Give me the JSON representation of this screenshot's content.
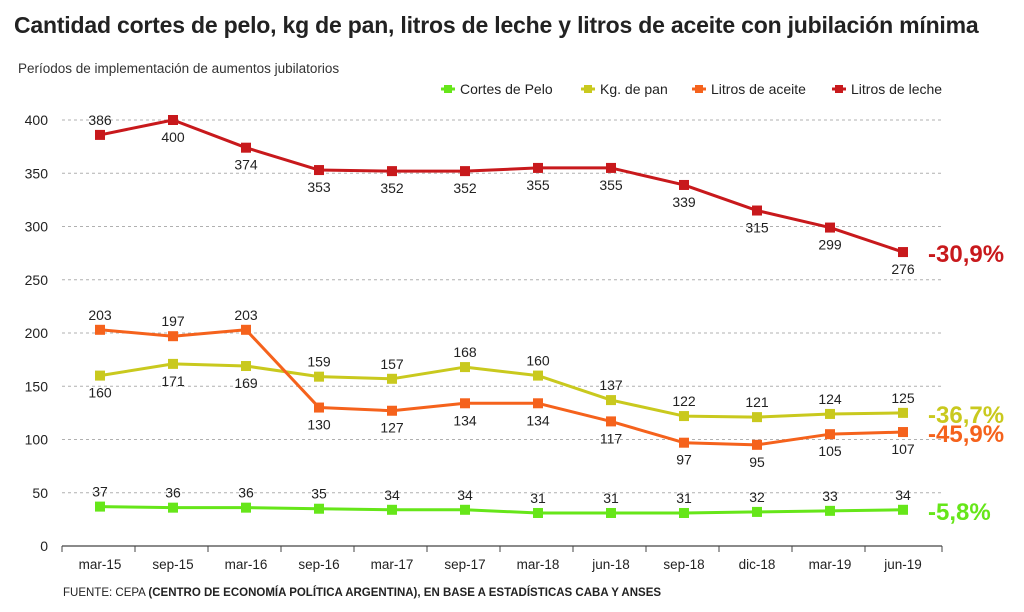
{
  "title": "Cantidad cortes de pelo, kg de pan, litros de leche y litros de aceite con jubilación mínima",
  "subtitle": "Períodos de implementación de aumentos jubilatorios",
  "footer": {
    "prefix": "FUENTE: CEPA ",
    "bold": "(CENTRO DE ECONOMÍA POLÍTICA ARGENTINA), EN BASE A ESTADÍSTICAS CABA Y ANSES"
  },
  "chart_data": {
    "type": "line",
    "title": "Cantidad cortes de pelo, kg de pan, litros de leche y litros de aceite con jubilación mínima",
    "subtitle": "Períodos de implementación de aumentos jubilatorios",
    "categories": [
      "mar-15",
      "sep-15",
      "mar-16",
      "sep-16",
      "mar-17",
      "sep-17",
      "mar-18",
      "jun-18",
      "sep-18",
      "dic-18",
      "mar-19",
      "jun-19"
    ],
    "ylim": [
      0,
      400
    ],
    "yticks": [
      0,
      50,
      100,
      150,
      200,
      250,
      300,
      350,
      400
    ],
    "grid": true,
    "legend_position": "top-right",
    "series": [
      {
        "name": "Cortes de Pelo",
        "color": "#66e619",
        "values": [
          37,
          36,
          36,
          35,
          34,
          34,
          31,
          31,
          31,
          32,
          33,
          34
        ],
        "labels": [
          "37",
          "36",
          "36",
          "35",
          "34",
          "34",
          "31",
          "31",
          "31",
          "32",
          "33",
          "34"
        ],
        "label_side": [
          "above",
          "above",
          "above",
          "above",
          "above",
          "above",
          "above",
          "above",
          "above",
          "above",
          "above",
          "above"
        ],
        "change": "-5,8%"
      },
      {
        "name": "Kg. de pan",
        "color": "#c9c91e",
        "values": [
          160,
          171,
          169,
          159,
          157,
          168,
          160,
          137,
          122,
          121,
          124,
          125
        ],
        "labels": [
          "160",
          "171",
          "169",
          "159",
          "157",
          "168",
          "160",
          "137",
          "122",
          "121",
          "124",
          "125"
        ],
        "label_side": [
          "below",
          "below",
          "below",
          "above",
          "above",
          "above",
          "above",
          "above",
          "above",
          "above",
          "above",
          "above"
        ],
        "change": "-36,7%"
      },
      {
        "name": "Litros de aceite",
        "color": "#f5621c",
        "values": [
          203,
          197,
          203,
          130,
          127,
          134,
          134,
          117,
          97,
          95,
          105,
          107
        ],
        "labels": [
          "203",
          "197",
          "203",
          "130",
          "127",
          "134",
          "134",
          "117",
          "97",
          "95",
          "105",
          "107"
        ],
        "label_side": [
          "above",
          "above",
          "above",
          "below",
          "below",
          "below",
          "below",
          "below",
          "below",
          "below",
          "below",
          "below"
        ],
        "change": "-45,9%"
      },
      {
        "name": "Litros de leche",
        "color": "#c8191c",
        "values": [
          386,
          400,
          374,
          353,
          352,
          352,
          355,
          355,
          339,
          315,
          299,
          276
        ],
        "labels": [
          "386",
          "400",
          "374",
          "353",
          "352",
          "352",
          "355",
          "355",
          "339",
          "315",
          "299",
          "276"
        ],
        "label_side": [
          "above",
          "below",
          "below",
          "below",
          "below",
          "below",
          "below",
          "below",
          "below",
          "below",
          "below",
          "below"
        ],
        "change": "-30,9%"
      }
    ]
  }
}
